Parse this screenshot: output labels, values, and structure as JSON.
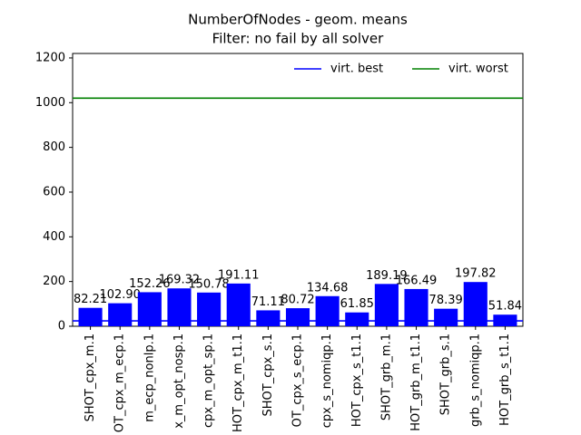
{
  "chart_data": {
    "type": "bar",
    "title": "NumberOfNodes - geom. means",
    "subtitle": "Filter: no fail by all solver",
    "categories": [
      "SHOT_cpx_m.1",
      "OT_cpx_m_ecp.1",
      "m_ecp_nonlp.1",
      "x_m_opt_nosp.1",
      "cpx_m_opt_sp.1",
      "HOT_cpx_m_t1.1",
      "SHOT_cpx_s.1",
      "OT_cpx_s_ecp.1",
      "cpx_s_nomiqp.1",
      "HOT_cpx_s_t1.1",
      "SHOT_grb_m.1",
      "HOT_grb_m_t1.1",
      "SHOT_grb_s.1",
      "grb_s_nomiqp.1",
      "HOT_grb_s_t1.1"
    ],
    "values": [
      82.21,
      102.9,
      152.26,
      169.32,
      150.78,
      191.11,
      71.11,
      80.72,
      134.68,
      61.85,
      189.19,
      166.49,
      78.39,
      197.82,
      51.84
    ],
    "value_labels": [
      "82.21",
      "102.90",
      "152.26",
      "169.32",
      "150.78",
      "191.11",
      "71.11",
      "80.72",
      "134.68",
      "61.85",
      "189.19",
      "166.49",
      "78.39",
      "197.82",
      "51.84"
    ],
    "color": "#0000ff",
    "hlines": [
      {
        "name": "virt. best",
        "color": "#0000ff",
        "value": 24
      },
      {
        "name": "virt. worst",
        "color": "#008000",
        "value": 1020
      }
    ],
    "ylim": [
      0,
      1220
    ],
    "yticks": [
      0,
      200,
      400,
      600,
      800,
      1000,
      1200
    ],
    "legend": "upper right"
  }
}
